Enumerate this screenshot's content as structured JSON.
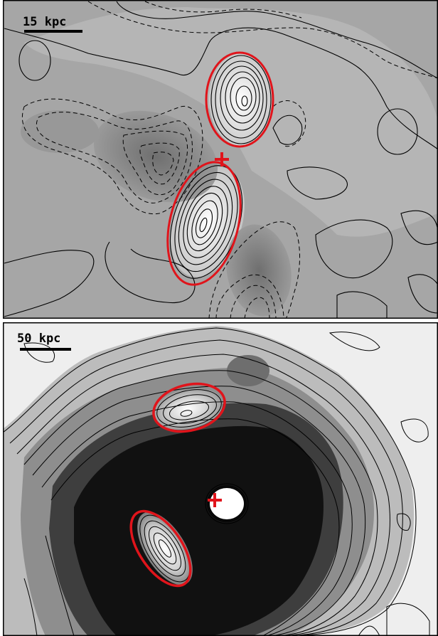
{
  "panels": [
    {
      "scale_label": "15 kpc",
      "features": {
        "upper_ellipse": {
          "stroke": "#e0141b"
        },
        "lower_ellipse": {
          "stroke": "#e0141b"
        },
        "center_cross": {
          "stroke": "#e0141b"
        }
      }
    },
    {
      "scale_label": "50 kpc",
      "features": {
        "upper_ellipse": {
          "stroke": "#e0141b"
        },
        "lower_ellipse": {
          "stroke": "#e0141b"
        },
        "center_cross": {
          "stroke": "#e0141b"
        }
      }
    }
  ],
  "colors": {
    "marker_red": "#e0141b",
    "contour": "#000000",
    "frame": "#000000"
  }
}
